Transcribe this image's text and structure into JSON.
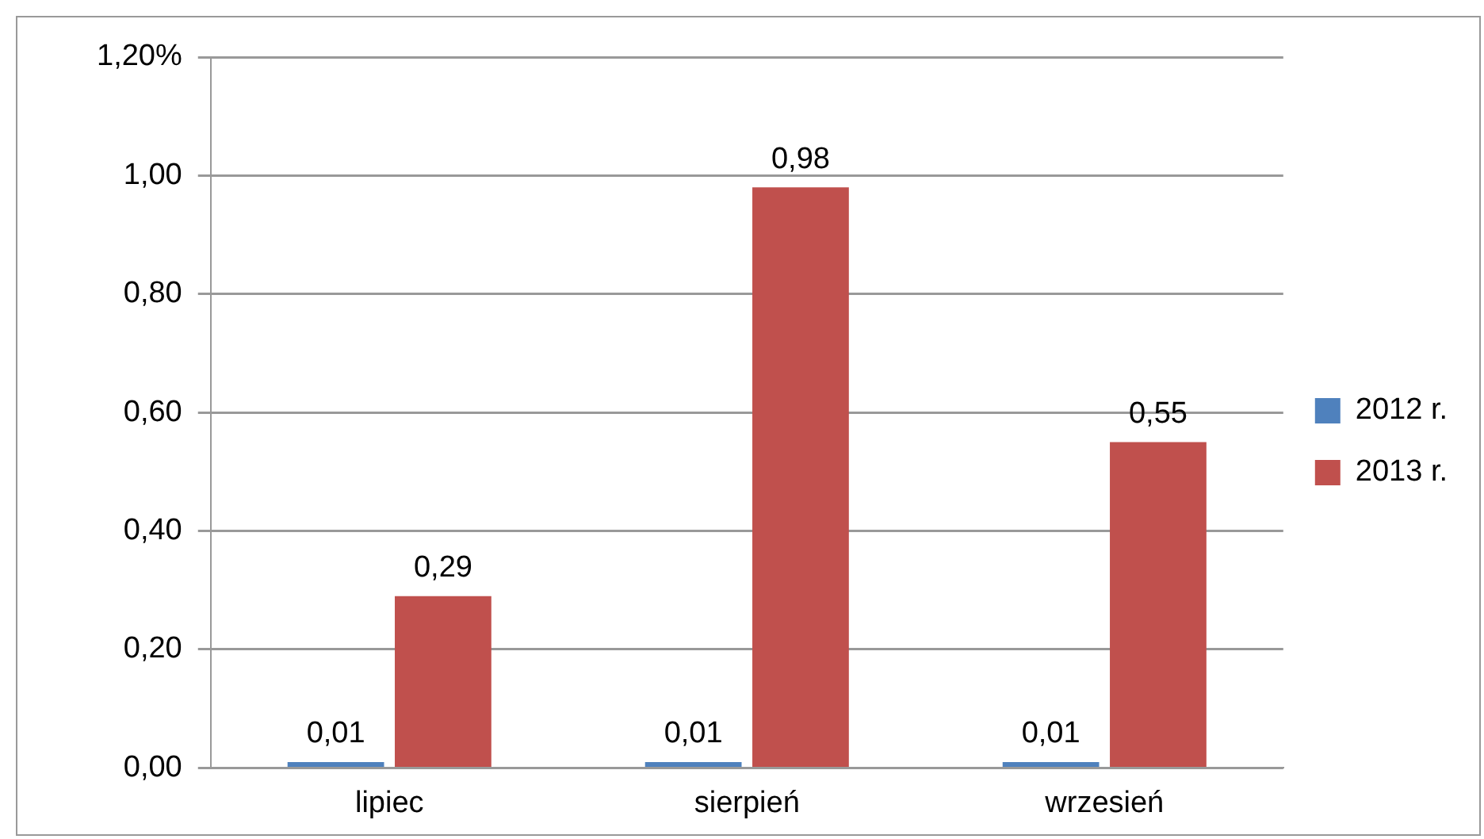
{
  "chart_data": {
    "type": "bar",
    "categories": [
      "lipiec",
      "sierpień",
      "wrzesień"
    ],
    "series": [
      {
        "name": "2012 r.",
        "color": "#4f81bd",
        "values": [
          0.01,
          0.01,
          0.01
        ],
        "value_labels": [
          "0,01",
          "0,01",
          "0,01"
        ]
      },
      {
        "name": "2013 r.",
        "color": "#c0504d",
        "values": [
          0.29,
          0.98,
          0.55
        ],
        "value_labels": [
          "0,29",
          "0,98",
          "0,55"
        ]
      }
    ],
    "ylim": [
      0,
      1.2
    ],
    "yticks": [
      {
        "value": 0,
        "label": "0,00"
      },
      {
        "value": 0.2,
        "label": "0,20"
      },
      {
        "value": 0.4,
        "label": "0,40"
      },
      {
        "value": 0.6,
        "label": "0,60"
      },
      {
        "value": 0.8,
        "label": "0,80"
      },
      {
        "value": 1,
        "label": "1,00"
      },
      {
        "value": 1.2,
        "label": "1,20%"
      }
    ],
    "grid": "y",
    "legend": "right"
  }
}
